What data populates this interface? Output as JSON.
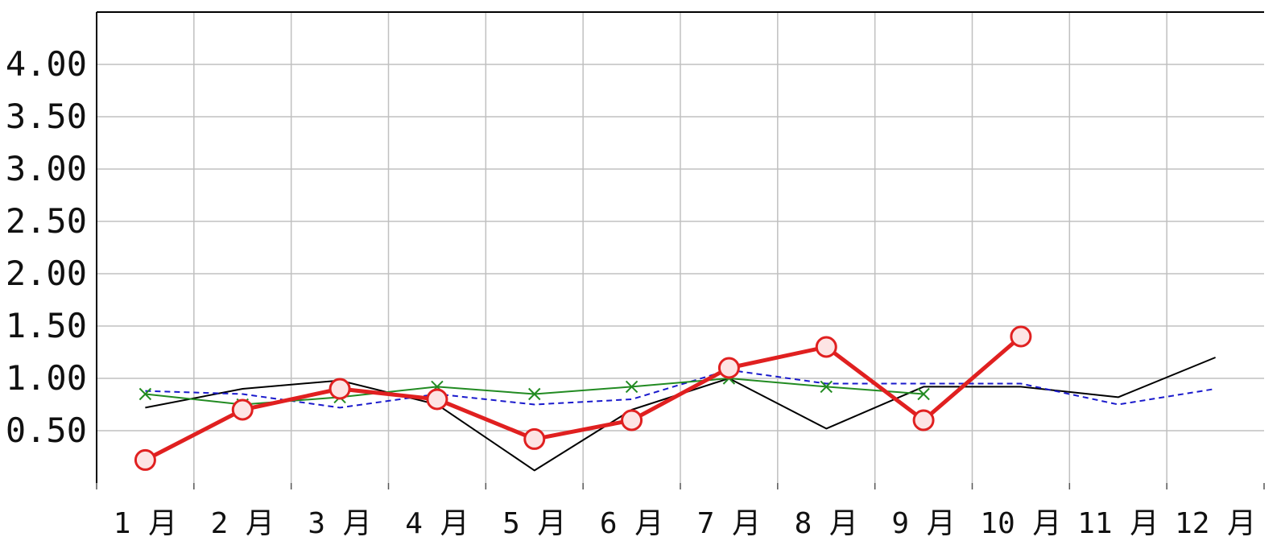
{
  "chart_data": {
    "type": "line",
    "title": "",
    "xlabel": "",
    "ylabel": "",
    "categories": [
      "1 月",
      "2 月",
      "3 月",
      "4 月",
      "5 月",
      "6 月",
      "7 月",
      "8 月",
      "9 月",
      "10 月",
      "11 月",
      "12 月"
    ],
    "ylim": [
      0.0,
      4.5
    ],
    "yticks": [
      "0.50",
      "1.00",
      "1.50",
      "2.00",
      "2.50",
      "3.00",
      "3.50",
      "4.00"
    ],
    "grid": true,
    "series": [
      {
        "color": "#000000",
        "style": "solid-thin",
        "values": [
          0.72,
          0.9,
          0.98,
          0.75,
          0.12,
          0.7,
          1.0,
          0.52,
          0.92,
          0.92,
          0.82,
          1.2
        ]
      },
      {
        "color": "#1a1acc",
        "style": "dashed",
        "values": [
          0.88,
          0.85,
          0.72,
          0.85,
          0.75,
          0.8,
          1.08,
          0.95,
          0.95,
          0.95,
          0.75,
          0.9
        ]
      },
      {
        "color": "#228b22",
        "style": "solid-x-markers",
        "values": [
          0.85,
          0.75,
          0.82,
          0.92,
          0.85,
          0.92,
          1.0,
          0.92,
          0.85,
          null,
          null,
          null
        ]
      },
      {
        "color": "#e02020",
        "style": "bold-circle-markers",
        "values": [
          0.22,
          0.7,
          0.9,
          0.8,
          0.42,
          0.6,
          1.1,
          1.3,
          0.6,
          1.4,
          null,
          null
        ]
      }
    ]
  }
}
